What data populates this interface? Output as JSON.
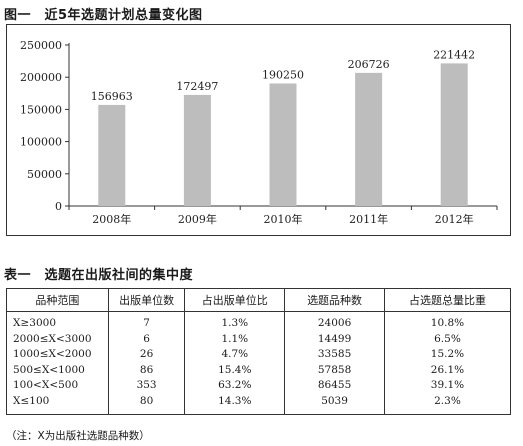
{
  "figure_title": "图一　近5年选题计划总量变化图",
  "chart_data": {
    "type": "bar",
    "categories": [
      "2008年",
      "2009年",
      "2010年",
      "2011年",
      "2012年"
    ],
    "values": [
      156963,
      172497,
      190250,
      206726,
      221442
    ],
    "value_labels": [
      "156963",
      "172497",
      "190250",
      "206726",
      "221442"
    ],
    "yticks": [
      "0",
      "50000",
      "100000",
      "150000",
      "200000",
      "250000"
    ],
    "ylim": [
      0,
      250000
    ],
    "grid": false,
    "bar_color": "#bdbdbd",
    "title": "",
    "xlabel": "",
    "ylabel": ""
  },
  "table_title": "表一　选题在出版社间的集中度",
  "table": {
    "headers": [
      "品种范围",
      "出版单位数",
      "占出版单位比",
      "选题品种数",
      "占选题总量比重"
    ],
    "rows": [
      [
        "X≥3000",
        "7",
        "1.3%",
        "24006",
        "10.8%"
      ],
      [
        "2000≤X<3000",
        "6",
        "1.1%",
        "14499",
        "6.5%"
      ],
      [
        "1000≤X<2000",
        "26",
        "4.7%",
        "33585",
        "15.2%"
      ],
      [
        "500≤X<1000",
        "86",
        "15.4%",
        "57858",
        "26.1%"
      ],
      [
        "100<X<500",
        "353",
        "63.2%",
        "86455",
        "39.1%"
      ],
      [
        "X≤100",
        "80",
        "14.3%",
        "5039",
        "2.3%"
      ]
    ]
  },
  "note": "（注：X为出版社选题品种数）"
}
